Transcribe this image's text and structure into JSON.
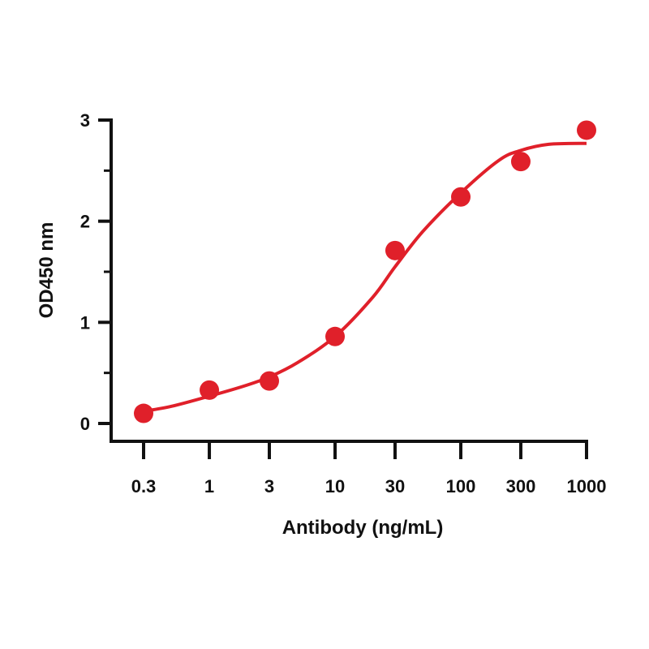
{
  "chart_data": {
    "type": "scatter",
    "xlabel": "Antibody (ng/mL)",
    "ylabel": "OD450 nm",
    "x_scale": "log",
    "xlim": [
      0.3,
      1000
    ],
    "ylim": [
      0,
      3
    ],
    "x_ticks": [
      0.3,
      1,
      3,
      10,
      30,
      100,
      300,
      1000
    ],
    "x_tick_labels": [
      "0.3",
      "1",
      "3",
      "10",
      "30",
      "100",
      "300",
      "1000"
    ],
    "y_ticks": [
      0,
      1,
      2,
      3
    ],
    "y_tick_labels": [
      "0",
      "1",
      "2",
      "3"
    ],
    "grid": false,
    "legend": "none",
    "color": "#e0202a",
    "series": [
      {
        "x": [
          0.3,
          1,
          3,
          10,
          30,
          100,
          300,
          1000
        ],
        "y": [
          0.1,
          0.33,
          0.42,
          0.86,
          1.71,
          2.24,
          2.59,
          2.9
        ]
      }
    ],
    "fit_curve": {
      "x": [
        0.3,
        0.5,
        1,
        2,
        3,
        5,
        10,
        20,
        30,
        50,
        100,
        200,
        300,
        500,
        1000
      ],
      "y": [
        0.12,
        0.17,
        0.27,
        0.38,
        0.46,
        0.6,
        0.86,
        1.25,
        1.55,
        1.9,
        2.28,
        2.6,
        2.7,
        2.76,
        2.77
      ]
    }
  }
}
